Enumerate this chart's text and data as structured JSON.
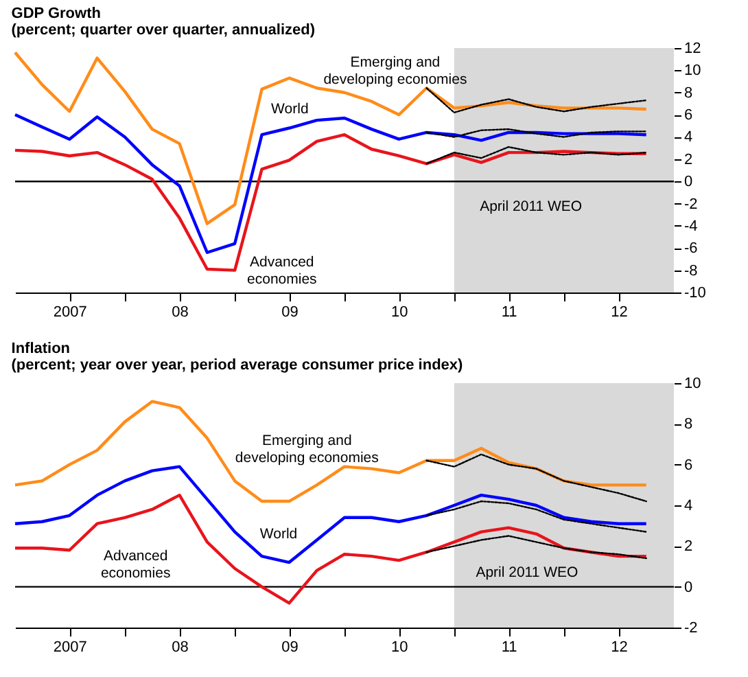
{
  "chart_data": [
    {
      "type": "line",
      "title": "GDP Growth",
      "subtitle": "(percent; quarter over quarter, annualized)",
      "x": [
        "2007-01",
        "2007-04",
        "2007-07",
        "2007-10",
        "2008-01",
        "2008-04",
        "2008-07",
        "2008-10",
        "2009-01",
        "2009-04",
        "2009-07",
        "2009-10",
        "2010-01",
        "2010-04",
        "2010-07",
        "2010-10",
        "2011-01",
        "2011-04",
        "2011-07",
        "2011-10",
        "2012-01",
        "2012-04",
        "2012-07",
        "2012-10"
      ],
      "series": [
        {
          "color": "#000000",
          "line_style": "dotted",
          "values": [
            null,
            null,
            null,
            null,
            null,
            null,
            null,
            null,
            null,
            null,
            null,
            null,
            null,
            null,
            null,
            8.4,
            6.2,
            6.9,
            7.4,
            6.7,
            6.3,
            6.7,
            7.0,
            7.3
          ]
        },
        {
          "color": "#000000",
          "line_style": "dotted",
          "values": [
            null,
            null,
            null,
            null,
            null,
            null,
            null,
            null,
            null,
            null,
            null,
            null,
            null,
            null,
            null,
            4.4,
            4.0,
            4.6,
            4.7,
            4.3,
            4.0,
            4.4,
            4.5,
            4.5
          ]
        },
        {
          "color": "#000000",
          "line_style": "dotted",
          "values": [
            null,
            null,
            null,
            null,
            null,
            null,
            null,
            null,
            null,
            null,
            null,
            null,
            null,
            null,
            null,
            1.6,
            2.6,
            2.1,
            3.1,
            2.6,
            2.4,
            2.6,
            2.4,
            2.6
          ]
        },
        {
          "color": "#ff8c1a",
          "line_style": "solid",
          "values": [
            11.6,
            8.7,
            6.3,
            11.1,
            8.1,
            4.7,
            3.4,
            -3.8,
            -2.1,
            8.3,
            9.3,
            8.4,
            8.0,
            7.2,
            6.0,
            8.4,
            6.6,
            6.8,
            7.1,
            6.8,
            6.6,
            6.6,
            6.6,
            6.5
          ]
        },
        {
          "color": "#0000ff",
          "line_style": "solid",
          "values": [
            6.0,
            4.9,
            3.8,
            5.8,
            4.0,
            1.5,
            -0.4,
            -6.4,
            -5.6,
            4.2,
            4.8,
            5.5,
            5.7,
            4.7,
            3.8,
            4.4,
            4.2,
            3.7,
            4.4,
            4.4,
            4.3,
            4.3,
            4.3,
            4.2
          ]
        },
        {
          "color": "#e8141c",
          "line_style": "solid",
          "values": [
            2.8,
            2.7,
            2.3,
            2.6,
            1.5,
            0.2,
            -3.3,
            -7.9,
            -8.0,
            1.1,
            1.9,
            3.6,
            4.2,
            2.9,
            2.3,
            1.6,
            2.4,
            1.7,
            2.6,
            2.6,
            2.7,
            2.6,
            2.5,
            2.5
          ]
        }
      ],
      "xlim": [
        "2007-01",
        "2013-01"
      ],
      "xticks": [
        {
          "value": "2007-07",
          "label": "2007"
        },
        {
          "value": "2008-01",
          "label": null
        },
        {
          "value": "2008-07",
          "label": "08"
        },
        {
          "value": "2009-01",
          "label": null
        },
        {
          "value": "2009-07",
          "label": "09"
        },
        {
          "value": "2010-01",
          "label": null
        },
        {
          "value": "2010-07",
          "label": "10"
        },
        {
          "value": "2011-01",
          "label": null
        },
        {
          "value": "2011-07",
          "label": "11"
        },
        {
          "value": "2012-01",
          "label": null
        },
        {
          "value": "2012-07",
          "label": "12"
        }
      ],
      "ylim": [
        -10,
        12
      ],
      "yticks": [
        -10,
        -8,
        -6,
        -4,
        -2,
        0,
        2,
        4,
        6,
        8,
        10,
        12
      ],
      "ref_lines": [
        {
          "axis": "y",
          "value": 0,
          "color": "#000000"
        }
      ],
      "bands": [
        {
          "axis": "x",
          "from": "2011-01",
          "to": "2013-01",
          "color": "#d9d9d9"
        }
      ],
      "annotations": [
        "Emerging and\ndeveloping economies",
        "World",
        "Advanced\neconomies",
        "April 2011 WEO"
      ],
      "grid": false
    },
    {
      "type": "line",
      "title": "Inflation",
      "subtitle": "(percent; year over year, period average consumer price index)",
      "x": [
        "2007-01",
        "2007-04",
        "2007-07",
        "2007-10",
        "2008-01",
        "2008-04",
        "2008-07",
        "2008-10",
        "2009-01",
        "2009-04",
        "2009-07",
        "2009-10",
        "2010-01",
        "2010-04",
        "2010-07",
        "2010-10",
        "2011-01",
        "2011-04",
        "2011-07",
        "2011-10",
        "2012-01",
        "2012-04",
        "2012-07",
        "2012-10"
      ],
      "series": [
        {
          "color": "#000000",
          "line_style": "dotted",
          "values": [
            null,
            null,
            null,
            null,
            null,
            null,
            null,
            null,
            null,
            null,
            null,
            null,
            null,
            null,
            null,
            6.2,
            5.9,
            6.5,
            6.0,
            5.8,
            5.2,
            4.9,
            4.6,
            4.2
          ]
        },
        {
          "color": "#000000",
          "line_style": "dotted",
          "values": [
            null,
            null,
            null,
            null,
            null,
            null,
            null,
            null,
            null,
            null,
            null,
            null,
            null,
            null,
            null,
            3.5,
            3.8,
            4.2,
            4.1,
            3.8,
            3.3,
            3.1,
            2.9,
            2.7
          ]
        },
        {
          "color": "#000000",
          "line_style": "dotted",
          "values": [
            null,
            null,
            null,
            null,
            null,
            null,
            null,
            null,
            null,
            null,
            null,
            null,
            null,
            null,
            null,
            1.7,
            2.0,
            2.3,
            2.5,
            2.2,
            1.9,
            1.7,
            1.6,
            1.4
          ]
        },
        {
          "color": "#ff8c1a",
          "line_style": "solid",
          "values": [
            5.0,
            5.2,
            6.0,
            6.7,
            8.1,
            9.1,
            8.8,
            7.3,
            5.2,
            4.2,
            4.2,
            5.0,
            5.9,
            5.8,
            5.6,
            6.2,
            6.2,
            6.8,
            6.1,
            5.8,
            5.2,
            5.0,
            5.0,
            5.0
          ]
        },
        {
          "color": "#0000ff",
          "line_style": "solid",
          "values": [
            3.1,
            3.2,
            3.5,
            4.5,
            5.2,
            5.7,
            5.9,
            4.3,
            2.7,
            1.5,
            1.2,
            2.3,
            3.4,
            3.4,
            3.2,
            3.5,
            4.0,
            4.5,
            4.3,
            4.0,
            3.4,
            3.2,
            3.1,
            3.1
          ]
        },
        {
          "color": "#e8141c",
          "line_style": "solid",
          "values": [
            1.9,
            1.9,
            1.8,
            3.1,
            3.4,
            3.8,
            4.5,
            2.2,
            0.9,
            0.0,
            -0.8,
            0.8,
            1.6,
            1.5,
            1.3,
            1.7,
            2.2,
            2.7,
            2.9,
            2.6,
            1.9,
            1.7,
            1.5,
            1.5
          ]
        }
      ],
      "xlim": [
        "2007-01",
        "2013-01"
      ],
      "xticks": [
        {
          "value": "2007-07",
          "label": "2007"
        },
        {
          "value": "2008-01",
          "label": null
        },
        {
          "value": "2008-07",
          "label": "08"
        },
        {
          "value": "2009-01",
          "label": null
        },
        {
          "value": "2009-07",
          "label": "09"
        },
        {
          "value": "2010-01",
          "label": null
        },
        {
          "value": "2010-07",
          "label": "10"
        },
        {
          "value": "2011-01",
          "label": null
        },
        {
          "value": "2011-07",
          "label": "11"
        },
        {
          "value": "2012-01",
          "label": null
        },
        {
          "value": "2012-07",
          "label": "12"
        }
      ],
      "ylim": [
        -2,
        10
      ],
      "yticks": [
        -2,
        0,
        2,
        4,
        6,
        8,
        10
      ],
      "ref_lines": [
        {
          "axis": "y",
          "value": 0,
          "color": "#000000"
        }
      ],
      "bands": [
        {
          "axis": "x",
          "from": "2011-01",
          "to": "2013-01",
          "color": "#d9d9d9"
        }
      ],
      "annotations": [
        "Emerging and\ndeveloping economies",
        "World",
        "Advanced\neconomies",
        "April 2011 WEO"
      ],
      "grid": false
    }
  ]
}
